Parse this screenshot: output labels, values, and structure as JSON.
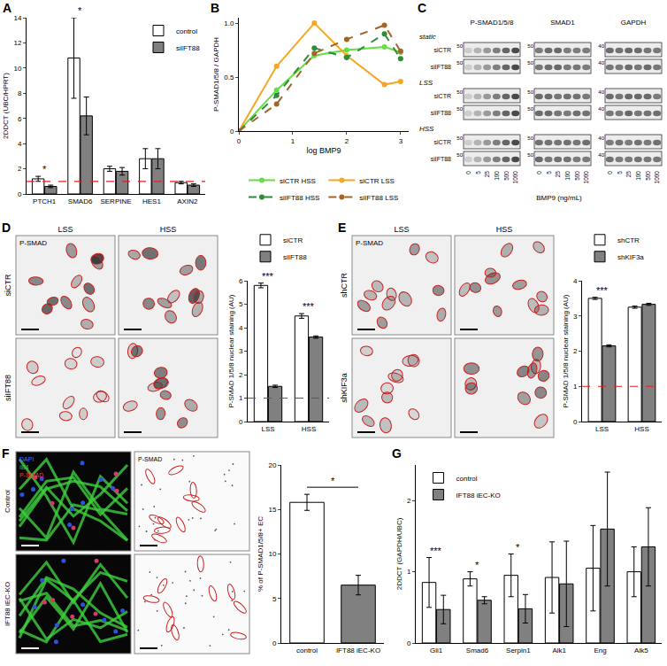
{
  "chart_data": [
    {
      "panel": "A",
      "type": "bar",
      "categories": [
        "PTCH1",
        "SMAD6",
        "SERPINE",
        "HES1",
        "AXIN2"
      ],
      "ylabel": "2DDCT (UBC/HPRT)",
      "ylim": [
        0,
        14
      ],
      "yticks": [
        0,
        2,
        4,
        6,
        8,
        10,
        12,
        14
      ],
      "series": [
        {
          "name": "control",
          "color": "#ffffff",
          "values": [
            1.2,
            10.8,
            2.0,
            2.8,
            0.9
          ],
          "errors": [
            0.2,
            3.2,
            0.2,
            0.8,
            0.1
          ]
        },
        {
          "name": "siIFT88",
          "color": "#808080",
          "values": [
            0.6,
            6.2,
            1.8,
            2.8,
            0.7
          ],
          "errors": [
            0.1,
            1.5,
            0.3,
            0.8,
            0.1
          ]
        }
      ],
      "reference_line": 1,
      "annotations": [
        {
          "category": "PTCH1",
          "text": "*"
        },
        {
          "category": "SMAD6",
          "text": "*"
        }
      ],
      "legend": "top-right"
    },
    {
      "panel": "B",
      "type": "line",
      "x": [
        0,
        0.7,
        1.4,
        2,
        2.7,
        3
      ],
      "xlabel": "log BMP9",
      "ylabel": "P-SMAD1/5/8 / GAPDH",
      "xlim": [
        0,
        3.15
      ],
      "xticks": [
        0,
        1,
        2,
        3
      ],
      "ylim": [
        0,
        1.05
      ],
      "yticks": [
        0,
        0.5,
        {
          "value": 1,
          "label": "1.0"
        }
      ],
      "series": [
        {
          "name": "siCTR HSS",
          "color": "#66dd44",
          "line_style": "solid",
          "marker": "circle",
          "values": [
            0,
            0.38,
            0.7,
            0.75,
            0.78,
            0.73
          ]
        },
        {
          "name": "siCTR LSS",
          "color": "#f5a623",
          "line_style": "solid",
          "marker": "circle",
          "values": [
            0,
            0.6,
            1.0,
            0.7,
            0.43,
            0.46
          ]
        },
        {
          "name": "siIFT88 HSS",
          "color": "#2e8b3a",
          "line_style": "dash",
          "marker": "circle",
          "values": [
            0,
            0.33,
            0.77,
            0.68,
            0.9,
            0.67
          ]
        },
        {
          "name": "siIFT88 LSS",
          "color": "#a0662a",
          "line_style": "dash",
          "marker": "circle",
          "values": [
            0,
            0.25,
            0.72,
            0.85,
            0.98,
            0.74
          ]
        }
      ],
      "legend": "bottom"
    },
    {
      "type": "bar",
      "categories": [
        "LSS",
        "HSS"
      ],
      "ylabel": "P-SMAD 1/5/8 nuclear staining (AU)",
      "ylim": [
        0,
        6
      ],
      "yticks": [
        0,
        1,
        2,
        3,
        4,
        5,
        6
      ],
      "series": [
        {
          "name": "siCTR",
          "color": "#ffffff",
          "values": [
            5.8,
            4.5
          ],
          "errors": [
            0.1,
            0.1
          ]
        },
        {
          "name": "siIFT88",
          "color": "#808080",
          "values": [
            1.5,
            3.6
          ],
          "errors": [
            0.05,
            0.05
          ]
        }
      ],
      "reference_line": 1,
      "annotations": [
        {
          "category": "LSS",
          "text": "***"
        },
        {
          "category": "HSS",
          "text": "***"
        }
      ],
      "legend": "top"
    },
    {
      "type": "bar",
      "categories": [
        "LSS",
        "HSS"
      ],
      "ylabel": "P-SMAD 1/5/8 nuclear staining (AU)",
      "ylim": [
        0,
        4
      ],
      "yticks": [
        0,
        1,
        2,
        3,
        4
      ],
      "series": [
        {
          "name": "shCTR",
          "color": "#ffffff",
          "values": [
            3.5,
            3.25
          ],
          "errors": [
            0.03,
            0.03
          ]
        },
        {
          "name": "shKIF3a",
          "color": "#808080",
          "values": [
            2.15,
            3.33
          ],
          "errors": [
            0.03,
            0.03
          ]
        }
      ],
      "reference_line": 1,
      "annotations": [
        {
          "category": "LSS",
          "text": "***"
        }
      ],
      "legend": "top"
    },
    {
      "type": "bar",
      "categories": [
        "control",
        "IFT88 iEC-KO"
      ],
      "ylabel": "% of P-SMAD1/5/8+ EC",
      "ylim": [
        0,
        20
      ],
      "yticks": [
        0,
        5,
        10,
        15,
        20
      ],
      "series": [
        {
          "name": "P-SMAD1/5/8+ EC",
          "colors": [
            "#ffffff",
            "#808080"
          ],
          "values": [
            15.8,
            6.5
          ],
          "errors": [
            0.9,
            1.1
          ]
        }
      ],
      "annotations": [
        {
          "between": [
            "control",
            "IFT88 iEC-KO"
          ],
          "text": "*"
        }
      ]
    },
    {
      "panel": "G",
      "type": "bar",
      "categories": [
        "Gli1",
        "Smad6",
        "Serpin1",
        "Alk1",
        "Eng",
        "Alk5"
      ],
      "ylabel": "2DDCT (GAPDH/UBC)",
      "ylim": [
        0,
        2.5
      ],
      "yticks": [
        0,
        1,
        2
      ],
      "series": [
        {
          "name": "control",
          "color": "#ffffff",
          "values": [
            0.85,
            0.9,
            0.95,
            0.92,
            1.05,
            1.0
          ],
          "errors": [
            0.35,
            0.1,
            0.3,
            0.5,
            0.6,
            0.35
          ]
        },
        {
          "name": "IFT88 iEC-KO",
          "color": "#808080",
          "values": [
            0.47,
            0.6,
            0.48,
            0.83,
            1.6,
            1.35
          ],
          "errors": [
            0.2,
            0.05,
            0.2,
            0.6,
            0.8,
            0.55
          ]
        }
      ],
      "annotations": [
        {
          "category": "Gli1",
          "text": "***"
        },
        {
          "category": "Smad6",
          "text": "*"
        },
        {
          "category": "Serpin1",
          "text": "*"
        }
      ],
      "legend": "top-left"
    }
  ],
  "images": {
    "C": {
      "panel": "C",
      "conditions": [
        "static",
        "LSS",
        "HSS"
      ],
      "rows": [
        "siCTR",
        "siIFT88"
      ],
      "columns": [
        {
          "name": "P-SMAD1/5/8",
          "marker": 50
        },
        {
          "name": "SMAD1",
          "marker": 50
        },
        {
          "name": "GAPDH",
          "marker": 40
        }
      ],
      "doses": [
        0,
        5,
        25,
        100,
        500,
        1000
      ],
      "dose_label": "BMP9 (ng/mL)"
    },
    "D": {
      "panel": "D",
      "stain": "P-SMAD",
      "rows": [
        "siCTR",
        "siIFT88"
      ],
      "columns": [
        "LSS",
        "HSS"
      ]
    },
    "E": {
      "panel": "E",
      "stain": "P-SMAD",
      "rows": [
        "shCTR",
        "shKIF3a"
      ],
      "columns": [
        "LSS",
        "HSS"
      ]
    },
    "F": {
      "panel": "F",
      "stains": [
        {
          "text": "DAPI",
          "color": "#4a6cff"
        },
        {
          "text": "IB4",
          "color": "#33cc44"
        },
        {
          "text": "P-SMAD",
          "color": "#ff3333"
        }
      ],
      "rows": [
        "Control",
        "IFT88 iEC-KO"
      ],
      "stain": "P-SMAD"
    }
  }
}
